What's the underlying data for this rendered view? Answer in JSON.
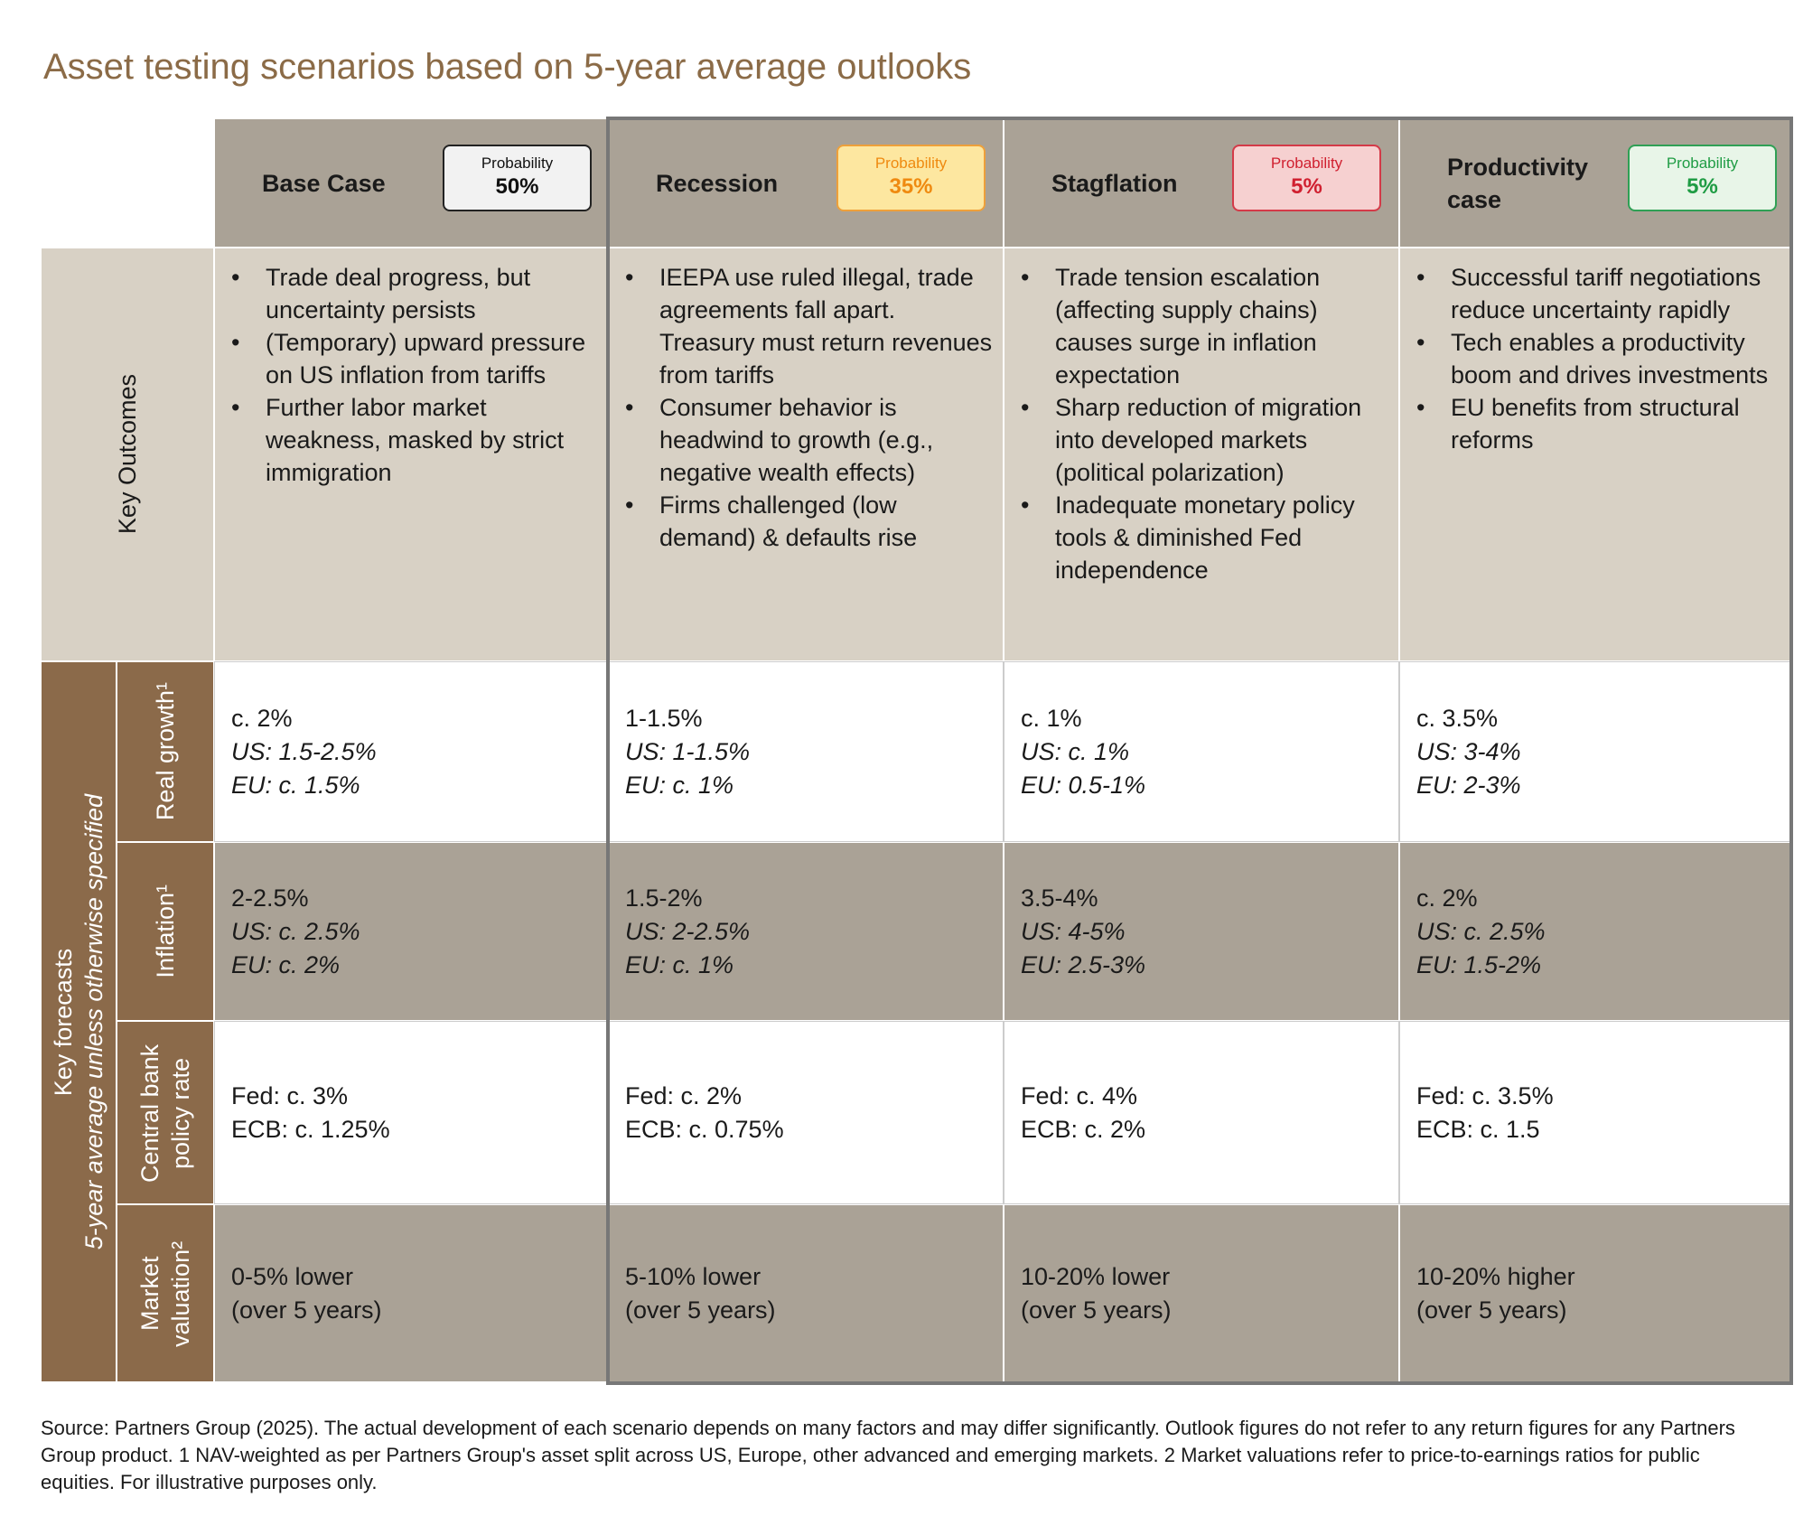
{
  "title": "Asset testing scenarios based on 5-year average outlooks",
  "scenarios": [
    {
      "name": "Base Case",
      "probability_label": "Probability",
      "probability": "50%",
      "outcomes": [
        "Trade deal progress, but uncertainty persists",
        "(Temporary) upward pressure on US inflation from tariffs",
        "Further labor market weakness, masked by strict immigration"
      ]
    },
    {
      "name": "Recession",
      "probability_label": "Probability",
      "probability": "35%",
      "outcomes": [
        "IEEPA use ruled illegal, trade agreements fall apart. Treasury must return revenues from tariffs",
        "Consumer behavior is headwind to growth (e.g., negative wealth effects)",
        "Firms challenged (low demand) & defaults rise"
      ]
    },
    {
      "name": "Stagflation",
      "probability_label": "Probability",
      "probability": "5%",
      "outcomes": [
        "Trade tension escalation (affecting supply chains) causes surge in inflation expectation",
        "Sharp reduction of migration into developed markets (political polarization)",
        "Inadequate monetary policy tools & diminished Fed independence"
      ]
    },
    {
      "name": "Productivity case",
      "probability_label": "Probability",
      "probability": "5%",
      "outcomes": [
        "Successful tariff negotiations reduce uncertainty rapidly",
        "Tech enables a productivity boom and drives investments",
        "EU benefits from structural reforms"
      ]
    }
  ],
  "outcomes_label": "Key Outcomes",
  "forecasts_label": "Key forecasts",
  "forecasts_sublabel": "5-year average unless otherwise specified",
  "forecast_rows": [
    {
      "label": "Real growth¹",
      "cells": [
        [
          "c. 2%",
          "US: 1.5-2.5%",
          "EU: c. 1.5%"
        ],
        [
          "1-1.5%",
          "US: 1-1.5%",
          "EU: c. 1%"
        ],
        [
          "c. 1%",
          "US: c. 1%",
          "EU: 0.5-1%"
        ],
        [
          "c. 3.5%",
          "US: 3-4%",
          "EU: 2-3%"
        ]
      ]
    },
    {
      "label": "Inflation¹",
      "cells": [
        [
          "2-2.5%",
          "US: c. 2.5%",
          "EU: c. 2%"
        ],
        [
          "1.5-2%",
          "US: 2-2.5%",
          "EU: c. 1%"
        ],
        [
          "3.5-4%",
          "US: 4-5%",
          "EU: 2.5-3%"
        ],
        [
          "c. 2%",
          "US: c. 2.5%",
          "EU: 1.5-2%"
        ]
      ]
    },
    {
      "label": "Central bank policy rate",
      "cells": [
        [
          "Fed: c. 3%",
          "ECB: c. 1.25%"
        ],
        [
          "Fed: c. 2%",
          "ECB: c. 0.75%"
        ],
        [
          "Fed: c. 4%",
          "ECB: c. 2%"
        ],
        [
          "Fed: c. 3.5%",
          "ECB: c. 1.5"
        ]
      ]
    },
    {
      "label": "Market valuation²",
      "cells": [
        [
          "0-5% lower",
          "(over 5 years)"
        ],
        [
          "5-10% lower",
          "(over 5 years)"
        ],
        [
          "10-20% lower",
          "(over 5 years)"
        ],
        [
          "10-20% higher",
          "(over 5 years)"
        ]
      ]
    }
  ],
  "source": "Source: Partners Group (2025). The actual development of each scenario depends on many factors and may differ significantly. Outlook figures do not refer to any return figures for any Partners Group product. 1 NAV-weighted as per Partners Group's asset split across US, Europe, other advanced and emerging markets. 2 Market valuations refer to price-to-earnings ratios for public equities. For illustrative purposes only."
}
